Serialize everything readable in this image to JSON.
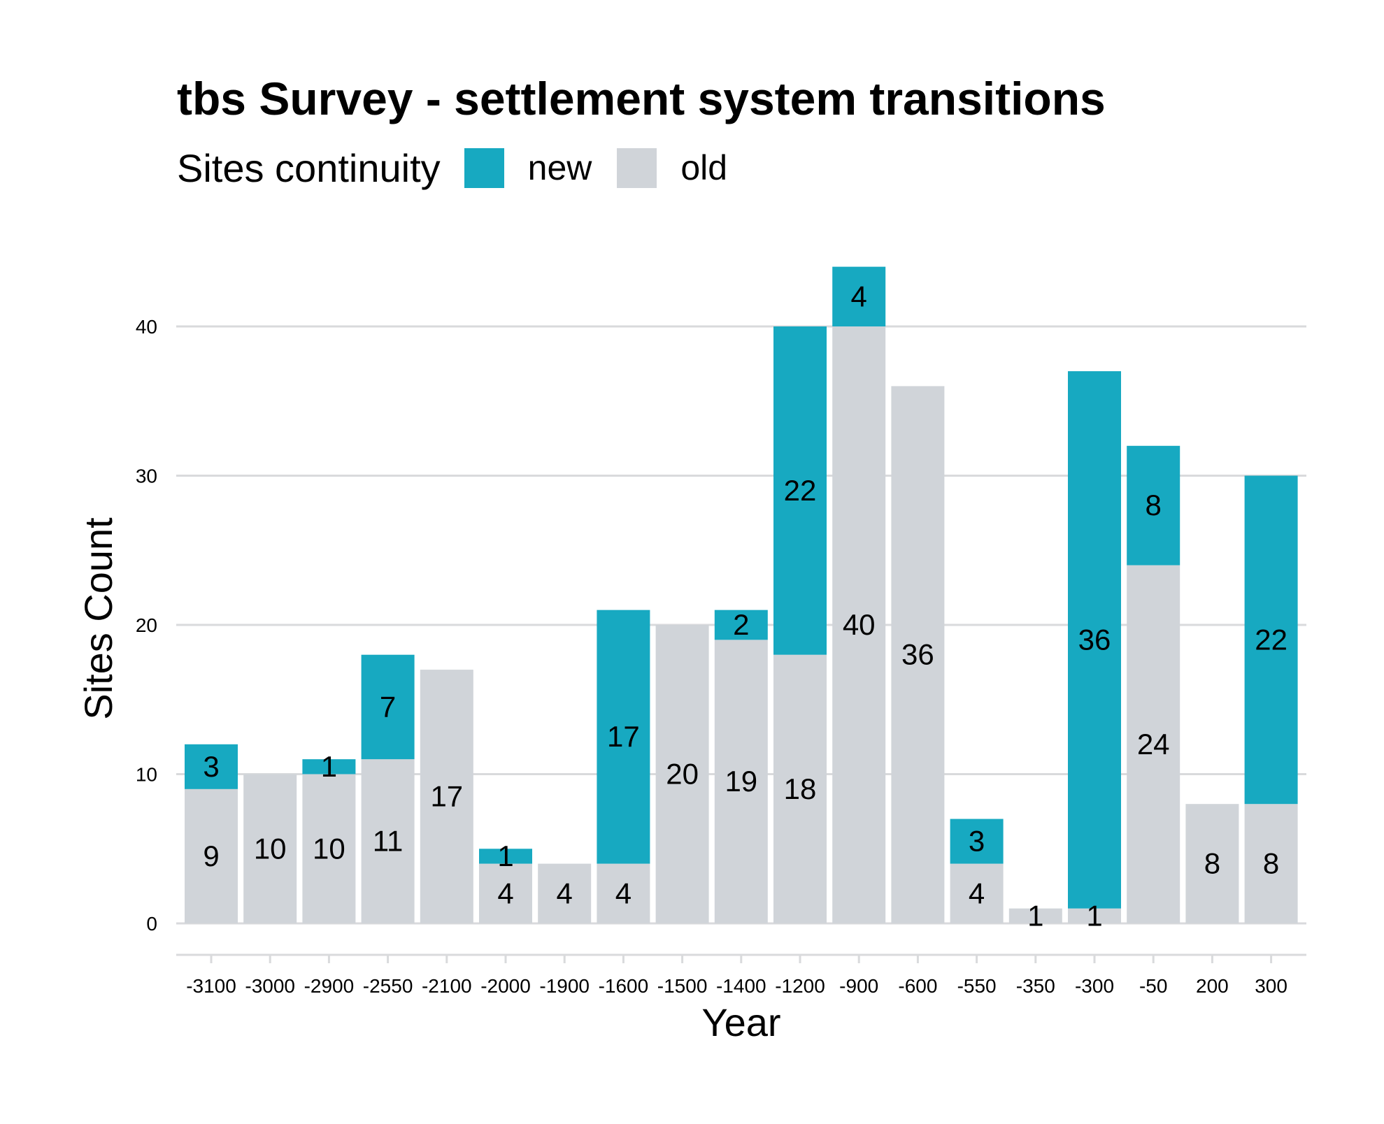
{
  "chart_data": {
    "type": "bar",
    "stacked": true,
    "title": "tbs Survey - settlement system transitions",
    "xlabel": "Year",
    "ylabel": "Sites Count",
    "ylim": [
      0,
      45
    ],
    "yticks": [
      0,
      10,
      20,
      30,
      40
    ],
    "grid": "horizontal",
    "legend": {
      "title": "Sites continuity",
      "placement": "top-left",
      "items": [
        {
          "label": "new",
          "color": "#17A9C1"
        },
        {
          "label": "old",
          "color": "#D0D4D9"
        }
      ]
    },
    "categories": [
      "-3100",
      "-3000",
      "-2900",
      "-2550",
      "-2100",
      "-2000",
      "-1900",
      "-1600",
      "-1500",
      "-1400",
      "-1200",
      "-900",
      "-600",
      "-550",
      "-350",
      "-300",
      "-50",
      "200",
      "300"
    ],
    "series": [
      {
        "name": "old",
        "color": "#D0D4D9",
        "values": [
          9,
          10,
          10,
          11,
          17,
          4,
          4,
          4,
          20,
          19,
          18,
          40,
          36,
          4,
          1,
          1,
          24,
          8,
          8
        ]
      },
      {
        "name": "new",
        "color": "#17A9C1",
        "values": [
          3,
          0,
          1,
          7,
          0,
          1,
          0,
          17,
          0,
          2,
          22,
          4,
          0,
          3,
          0,
          36,
          8,
          0,
          22
        ]
      }
    ]
  }
}
